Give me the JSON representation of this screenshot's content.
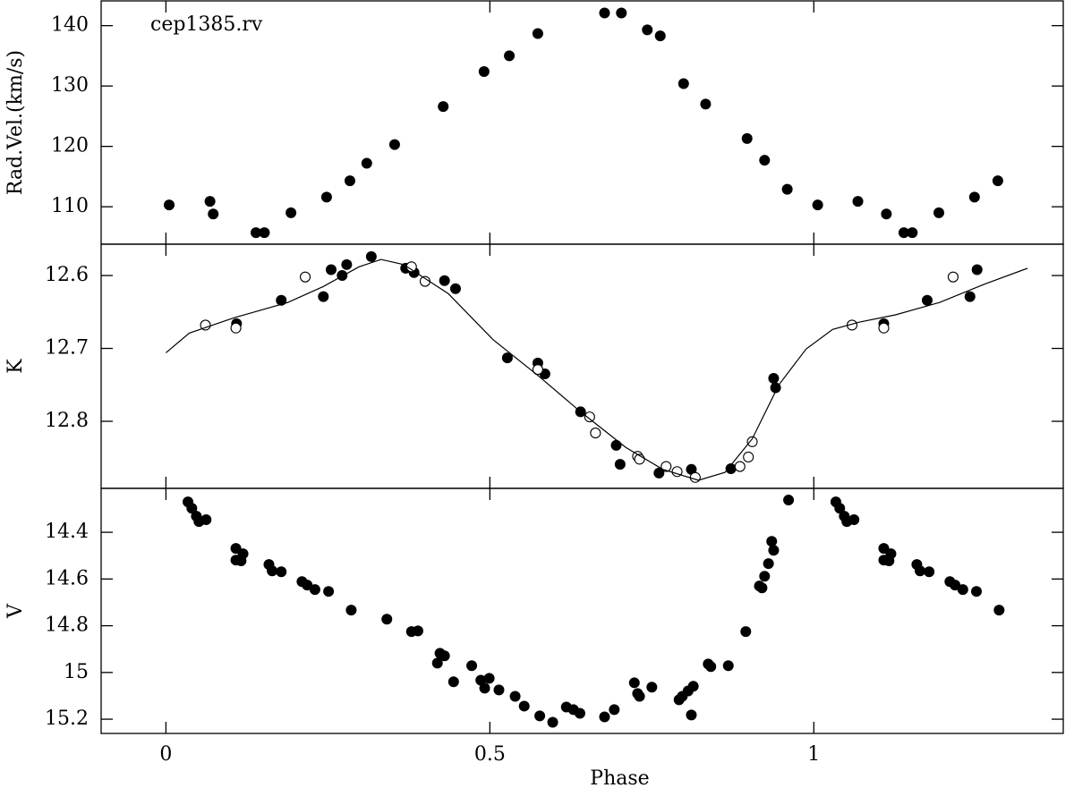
{
  "chart_data": [
    {
      "type": "scatter",
      "ylabel": "Rad.Vel.(km/s)",
      "annotation": "cep1385.rv",
      "xlim": [
        -0.1,
        1.385
      ],
      "xticks": [
        0,
        0.5,
        1
      ],
      "ylim": [
        103.8,
        144.1
      ],
      "yticks": [
        110,
        120,
        130,
        140
      ],
      "invert_y": false,
      "series": [
        {
          "style": "filled",
          "color": "#000000",
          "x": [
            0.005,
            0.068,
            0.073,
            0.139,
            0.152,
            0.193,
            0.248,
            0.284,
            0.31,
            0.353,
            0.428,
            0.491,
            0.53,
            0.574,
            0.677,
            0.703,
            0.743,
            0.763,
            0.799,
            0.833,
            0.897,
            0.924,
            0.959,
            1.006,
            1.068,
            1.112,
            1.139,
            1.152,
            1.193,
            1.248,
            1.284
          ],
          "values": [
            110.3,
            110.9,
            108.8,
            105.7,
            105.7,
            109,
            111.6,
            114.3,
            117.2,
            120.3,
            126.6,
            132.4,
            135,
            138.7,
            142.1,
            142.1,
            139.3,
            138.3,
            130.4,
            127,
            121.3,
            117.7,
            112.9,
            110.3,
            110.9,
            108.8,
            105.7,
            105.7,
            109,
            111.6,
            114.3
          ]
        }
      ]
    },
    {
      "type": "scatter",
      "ylabel": "K",
      "xlim": [
        -0.1,
        1.385
      ],
      "xticks": [
        0,
        0.5,
        1
      ],
      "ylim": [
        12.557,
        12.892
      ],
      "yticks": [
        12.6,
        12.7,
        12.8
      ],
      "invert_y": true,
      "series": [
        {
          "style": "filled",
          "color": "#000000",
          "x": [
            0.109,
            0.178,
            0.243,
            0.255,
            0.272,
            0.279,
            0.317,
            0.37,
            0.383,
            0.43,
            0.447,
            0.527,
            0.574,
            0.585,
            0.64,
            0.695,
            0.701,
            0.761,
            0.811,
            0.872,
            0.938,
            0.941,
            1.108,
            1.175,
            1.241,
            1.252
          ],
          "values": [
            12.666,
            12.634,
            12.629,
            12.592,
            12.6,
            12.585,
            12.574,
            12.59,
            12.596,
            12.607,
            12.618,
            12.713,
            12.72,
            12.735,
            12.787,
            12.833,
            12.859,
            12.871,
            12.866,
            12.865,
            12.741,
            12.754,
            12.666,
            12.634,
            12.629,
            12.592
          ]
        },
        {
          "style": "open",
          "color": "#000000",
          "x": [
            0.061,
            0.108,
            0.215,
            0.379,
            0.4,
            0.574,
            0.654,
            0.663,
            0.728,
            0.731,
            0.772,
            0.789,
            0.817,
            0.886,
            0.899,
            0.905,
            1.059,
            1.108,
            1.215
          ],
          "values": [
            12.668,
            12.672,
            12.602,
            12.588,
            12.608,
            12.729,
            12.794,
            12.816,
            12.848,
            12.852,
            12.862,
            12.869,
            12.877,
            12.862,
            12.849,
            12.828,
            12.668,
            12.672,
            12.602
          ]
        },
        {
          "style": "line",
          "color": "#000000",
          "x": [
            0,
            0.036,
            0.105,
            0.188,
            0.243,
            0.298,
            0.332,
            0.367,
            0.436,
            0.505,
            0.574,
            0.64,
            0.71,
            0.767,
            0.822,
            0.863,
            0.905,
            0.946,
            0.988,
            1.029,
            1.07,
            1.126,
            1.194,
            1.263,
            1.33
          ],
          "values": [
            12.706,
            12.679,
            12.658,
            12.637,
            12.615,
            12.588,
            12.578,
            12.585,
            12.625,
            12.688,
            12.737,
            12.787,
            12.836,
            12.866,
            12.881,
            12.87,
            12.824,
            12.75,
            12.701,
            12.674,
            12.664,
            12.654,
            12.637,
            12.612,
            12.59
          ]
        }
      ]
    },
    {
      "type": "scatter",
      "ylabel": "V",
      "xlabel": "Phase",
      "xlim": [
        -0.1,
        1.385
      ],
      "xticks": [
        0,
        0.5,
        1
      ],
      "ylim": [
        14.212,
        15.261
      ],
      "yticks": [
        14.4,
        14.6,
        14.8,
        15,
        15.2
      ],
      "invert_y": true,
      "series": [
        {
          "style": "filled",
          "color": "#000000",
          "x": [
            0.034,
            0.04,
            0.047,
            0.051,
            0.062,
            0.108,
            0.108,
            0.116,
            0.119,
            0.159,
            0.164,
            0.178,
            0.21,
            0.218,
            0.23,
            0.251,
            0.286,
            0.341,
            0.379,
            0.389,
            0.419,
            0.423,
            0.43,
            0.444,
            0.472,
            0.486,
            0.492,
            0.499,
            0.514,
            0.539,
            0.553,
            0.577,
            0.597,
            0.618,
            0.629,
            0.639,
            0.677,
            0.692,
            0.723,
            0.728,
            0.731,
            0.75,
            0.792,
            0.797,
            0.806,
            0.811,
            0.814,
            0.837,
            0.841,
            0.868,
            0.895,
            0.916,
            0.92,
            0.924,
            0.93,
            0.935,
            0.938,
            0.961,
            1.034,
            1.04,
            1.047,
            1.051,
            1.062,
            1.108,
            1.108,
            1.116,
            1.119,
            1.159,
            1.164,
            1.178,
            1.21,
            1.218,
            1.23,
            1.251,
            1.286
          ],
          "values": [
            14.27,
            14.297,
            14.331,
            14.354,
            14.346,
            14.469,
            14.519,
            14.522,
            14.492,
            14.538,
            14.565,
            14.569,
            14.611,
            14.626,
            14.645,
            14.653,
            14.733,
            14.772,
            14.825,
            14.822,
            14.96,
            14.918,
            14.929,
            15.04,
            14.971,
            15.033,
            15.067,
            15.025,
            15.075,
            15.102,
            15.144,
            15.186,
            15.213,
            15.148,
            15.159,
            15.175,
            15.19,
            15.159,
            15.044,
            15.09,
            15.102,
            15.063,
            15.117,
            15.102,
            15.079,
            15.182,
            15.059,
            14.964,
            14.975,
            14.971,
            14.825,
            14.63,
            14.638,
            14.588,
            14.534,
            14.439,
            14.477,
            14.262,
            14.27,
            14.297,
            14.331,
            14.354,
            14.346,
            14.469,
            14.519,
            14.522,
            14.492,
            14.538,
            14.565,
            14.569,
            14.611,
            14.626,
            14.645,
            14.653,
            14.733
          ]
        }
      ]
    }
  ]
}
